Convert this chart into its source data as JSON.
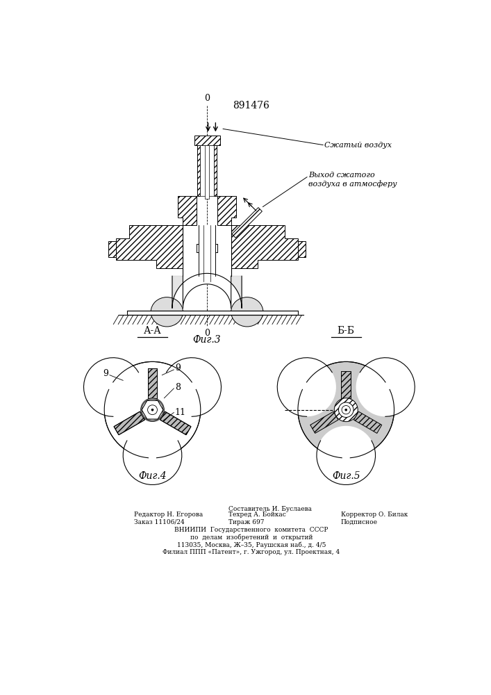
{
  "patent_number": "891476",
  "fig3_label": "Фиг.3",
  "fig4_label": "Фиг.4",
  "fig5_label": "Фиг.5",
  "fig4_section": "А-А",
  "fig5_section": "Б-Б",
  "label_compressed_air": "Сжатый воздух",
  "label_exhaust": "Выход сжатого\nвоздуха в атмосферу",
  "label_o": "0",
  "label_9a": "9",
  "label_9b": "9",
  "label_8": "8",
  "label_11": "11",
  "footer_line1": "Редактор Н. Егорова",
  "footer_line2": "Заказ 11106/24",
  "footer_col2_line1": "Составитель И. Буслаева",
  "footer_col2_line2": "Техред А. Бойкас",
  "footer_col2_line3": "Тираж 697",
  "footer_col3_line1": "Корректор О. Билак",
  "footer_col3_line2": "Подписное",
  "footer_vniip1": "ВНИИПИ  Государственного  комитета  СССР",
  "footer_vniip2": "по  делам  изобретений  и  открытий",
  "footer_vniip3": "113035, Москва, Ж–35, Раушская наб., д. 4/5",
  "footer_vniip4": "Филиал ППП «Патент», г. Ужгород, ул. Проектная, 4",
  "bg_color": "#ffffff",
  "line_color": "#000000",
  "text_color": "#000000"
}
